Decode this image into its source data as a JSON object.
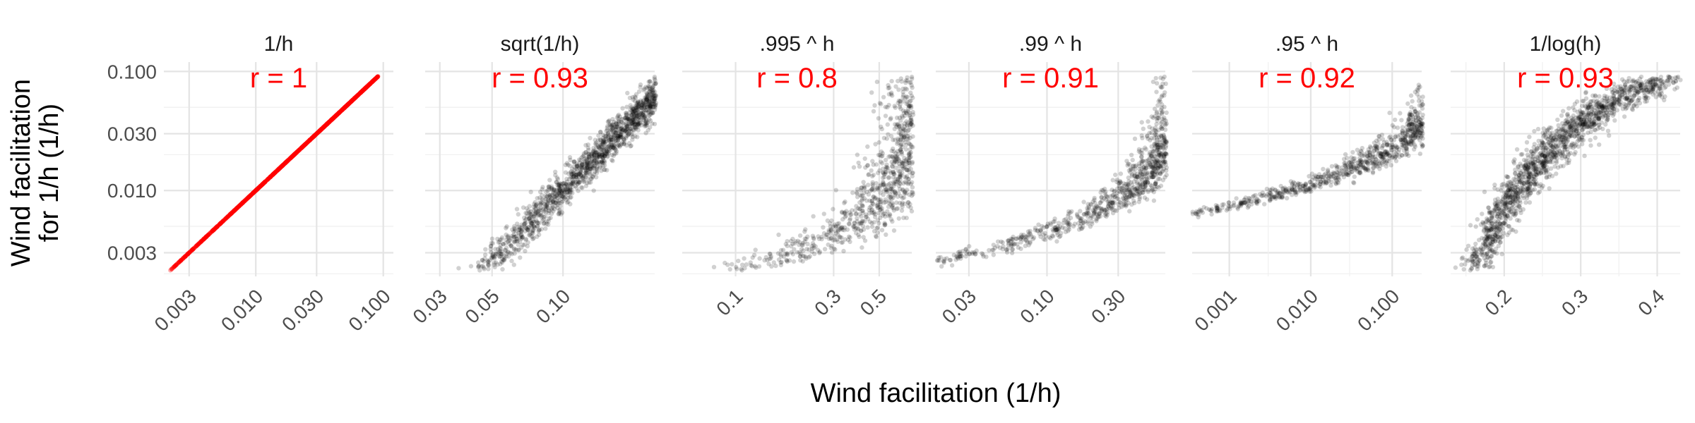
{
  "chart_data": {
    "type": "scatter",
    "xlabel": "Wind facilitation (1/h)",
    "ylabel_lines": [
      "Wind facilitation",
      "for 1/h (1/h)"
    ],
    "y_scale": "log10",
    "ylim": [
      0.0019,
      0.12
    ],
    "y_ticks": [
      0.003,
      0.01,
      0.03,
      0.1
    ],
    "y_tick_labels": [
      "0.003",
      "0.010",
      "0.030",
      "0.100"
    ],
    "colors": {
      "highlight": "#ff0000",
      "points": "#000000",
      "text": "#1a1a1a"
    },
    "panels": [
      {
        "title": "1/h",
        "r_label": "r = 1",
        "point_color": "#ff0000",
        "x_scale": "log10",
        "xlim": [
          0.0019,
          0.12
        ],
        "transform": "identity",
        "x_ticks": [
          0.003,
          0.01,
          0.03,
          0.1
        ],
        "x_tick_labels": [
          "0.003",
          "0.010",
          "0.030",
          "0.100"
        ]
      },
      {
        "title": "sqrt(1/h)",
        "r_label": "r = 0.93",
        "point_color": "#000000",
        "x_scale": "log10",
        "xlim": [
          0.026,
          0.245
        ],
        "transform": "sqrt",
        "x_ticks": [
          0.03,
          0.05,
          0.1
        ],
        "x_tick_labels": [
          "0.03",
          "0.05",
          "0.10"
        ]
      },
      {
        "title": ".995 ^ h",
        "r_label": "r = 0.8",
        "point_color": "#000000",
        "x_scale": "log10",
        "xlim": [
          0.055,
          0.72
        ],
        "transform": "pow995",
        "x_ticks": [
          0.1,
          0.3,
          0.5
        ],
        "x_tick_labels": [
          "0.1",
          "0.3",
          "0.5"
        ]
      },
      {
        "title": ".99 ^ h",
        "r_label": "r = 0.91",
        "point_color": "#000000",
        "x_scale": "log10",
        "xlim": [
          0.018,
          0.62
        ],
        "transform": "pow99",
        "x_ticks": [
          0.03,
          0.1,
          0.3
        ],
        "x_tick_labels": [
          "0.03",
          "0.10",
          "0.30"
        ]
      },
      {
        "title": ".95 ^ h",
        "r_label": "r = 0.92",
        "point_color": "#000000",
        "x_scale": "log10",
        "xlim": [
          0.00035,
          0.23
        ],
        "transform": "pow95",
        "x_ticks": [
          0.001,
          0.01,
          0.1
        ],
        "x_tick_labels": [
          "0.001",
          "0.010",
          "0.100"
        ]
      },
      {
        "title": "1/log(h)",
        "r_label": "r = 0.93",
        "point_color": "#000000",
        "x_scale": "linear",
        "xlim": [
          0.13,
          0.43
        ],
        "transform": "invlog",
        "x_ticks": [
          0.2,
          0.3,
          0.4
        ],
        "x_tick_labels": [
          "0.2",
          "0.3",
          "0.4"
        ]
      }
    ]
  }
}
